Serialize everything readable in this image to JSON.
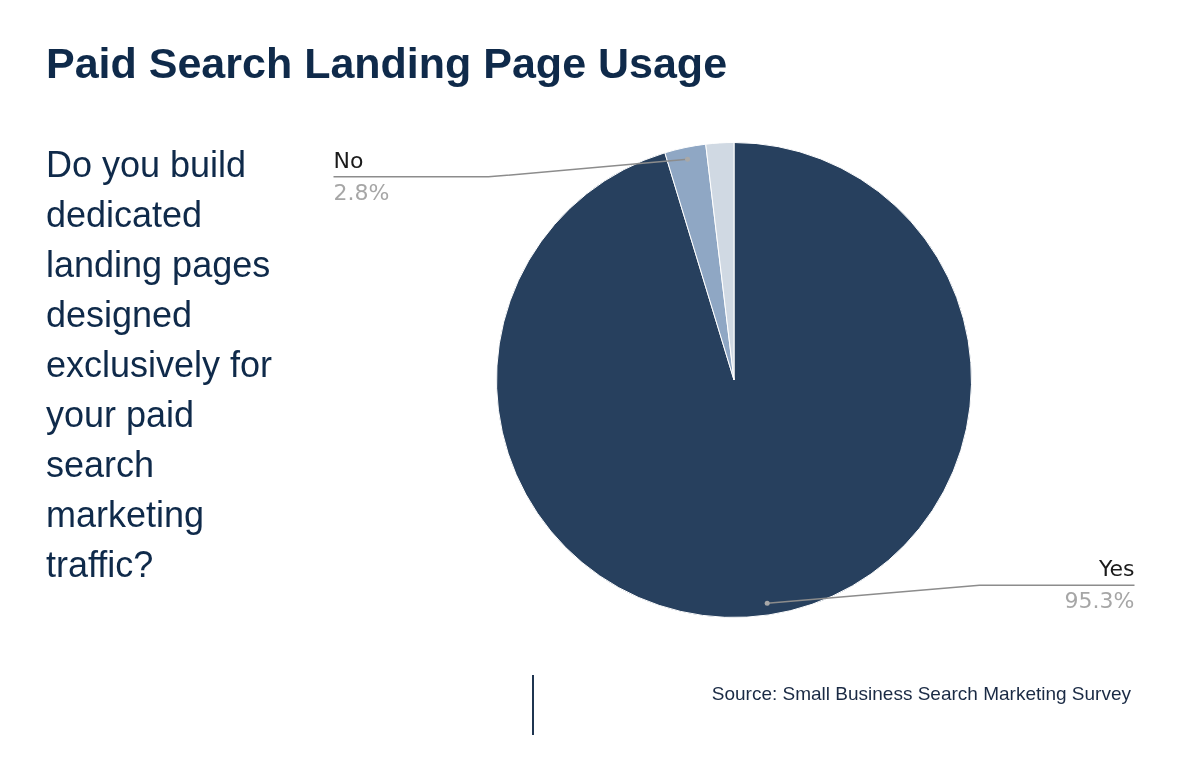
{
  "chart_data": {
    "type": "pie",
    "title": "Paid Search Landing Page Usage",
    "subtitle": "Do you build dedicated landing pages designed exclusively for your paid search marketing traffic?",
    "categories": [
      "Yes",
      "No",
      null
    ],
    "values": [
      95.3,
      2.8,
      1.9
    ],
    "colors": [
      "#27405e",
      "#8fa7c4",
      "#d0d9e3"
    ],
    "value_labels": [
      "95.3%",
      "2.8%",
      null
    ],
    "annotations": [
      "Source: Small Business Search Marketing Survey"
    ]
  }
}
